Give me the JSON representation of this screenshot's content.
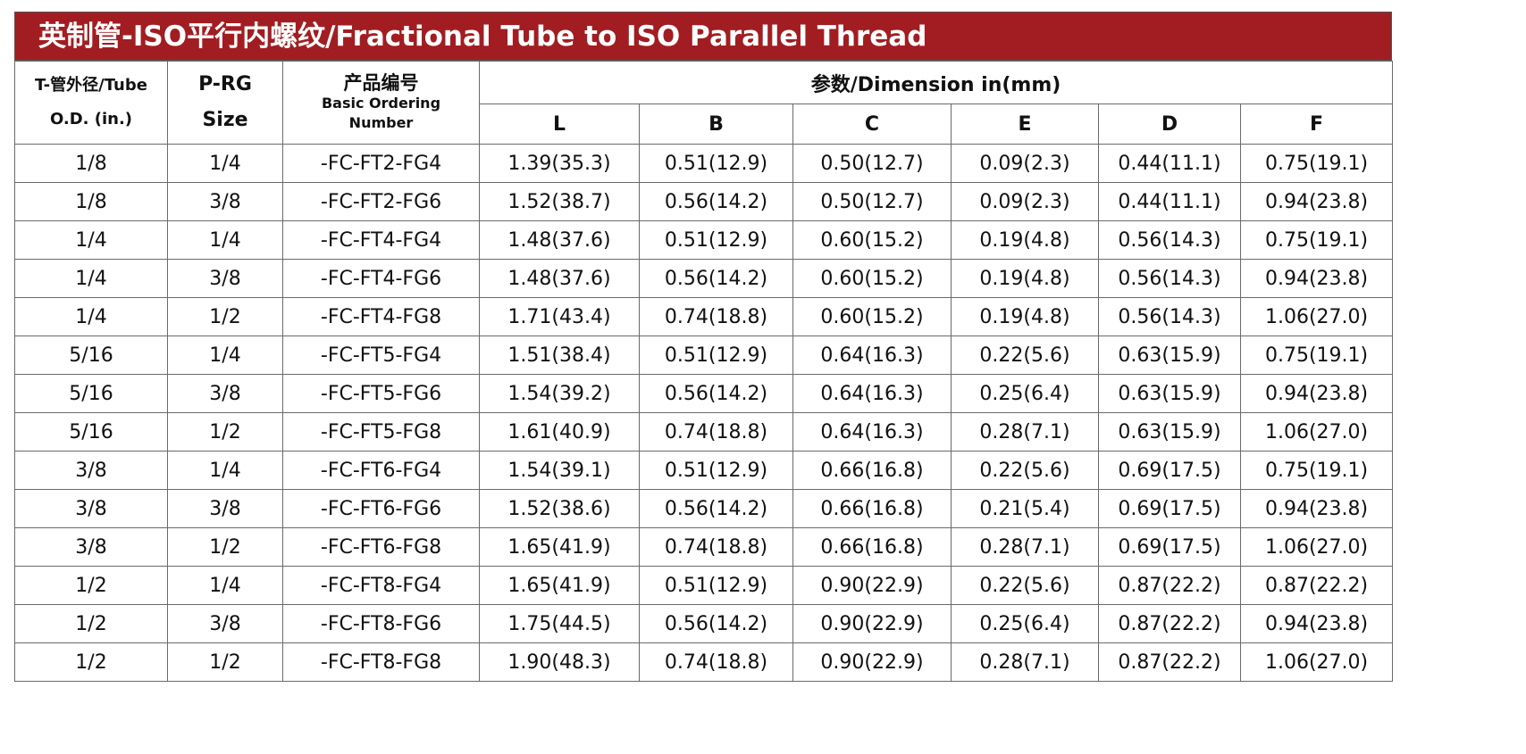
{
  "title": "英制管-ISO平行内螺纹/Fractional Tube to ISO Parallel Thread",
  "colors": {
    "title_bg": "#a21d21",
    "title_text": "#ffffff",
    "border": "#6a6a6a"
  },
  "headers": {
    "tube_od_line1": "T-管外径/Tube",
    "tube_od_line2": "O.D. (in.)",
    "prg_line1": "P-RG",
    "prg_line2": "Size",
    "code_cn": "产品编号",
    "code_en_line1": "Basic Ordering",
    "code_en_line2": "Number",
    "dimension": "参数/Dimension in(mm)",
    "dims": [
      "L",
      "B",
      "C",
      "E",
      "D",
      "F"
    ]
  },
  "rows": [
    [
      "1/8",
      "1/4",
      "-FC-FT2-FG4",
      "1.39(35.3)",
      "0.51(12.9)",
      "0.50(12.7)",
      "0.09(2.3)",
      "0.44(11.1)",
      "0.75(19.1)"
    ],
    [
      "1/8",
      "3/8",
      "-FC-FT2-FG6",
      "1.52(38.7)",
      "0.56(14.2)",
      "0.50(12.7)",
      "0.09(2.3)",
      "0.44(11.1)",
      "0.94(23.8)"
    ],
    [
      "1/4",
      "1/4",
      "-FC-FT4-FG4",
      "1.48(37.6)",
      "0.51(12.9)",
      "0.60(15.2)",
      "0.19(4.8)",
      "0.56(14.3)",
      "0.75(19.1)"
    ],
    [
      "1/4",
      "3/8",
      "-FC-FT4-FG6",
      "1.48(37.6)",
      "0.56(14.2)",
      "0.60(15.2)",
      "0.19(4.8)",
      "0.56(14.3)",
      "0.94(23.8)"
    ],
    [
      "1/4",
      "1/2",
      "-FC-FT4-FG8",
      "1.71(43.4)",
      "0.74(18.8)",
      "0.60(15.2)",
      "0.19(4.8)",
      "0.56(14.3)",
      "1.06(27.0)"
    ],
    [
      "5/16",
      "1/4",
      "-FC-FT5-FG4",
      "1.51(38.4)",
      "0.51(12.9)",
      "0.64(16.3)",
      "0.22(5.6)",
      "0.63(15.9)",
      "0.75(19.1)"
    ],
    [
      "5/16",
      "3/8",
      "-FC-FT5-FG6",
      "1.54(39.2)",
      "0.56(14.2)",
      "0.64(16.3)",
      "0.25(6.4)",
      "0.63(15.9)",
      "0.94(23.8)"
    ],
    [
      "5/16",
      "1/2",
      "-FC-FT5-FG8",
      "1.61(40.9)",
      "0.74(18.8)",
      "0.64(16.3)",
      "0.28(7.1)",
      "0.63(15.9)",
      "1.06(27.0)"
    ],
    [
      "3/8",
      "1/4",
      "-FC-FT6-FG4",
      "1.54(39.1)",
      "0.51(12.9)",
      "0.66(16.8)",
      "0.22(5.6)",
      "0.69(17.5)",
      "0.75(19.1)"
    ],
    [
      "3/8",
      "3/8",
      "-FC-FT6-FG6",
      "1.52(38.6)",
      "0.56(14.2)",
      "0.66(16.8)",
      "0.21(5.4)",
      "0.69(17.5)",
      "0.94(23.8)"
    ],
    [
      "3/8",
      "1/2",
      "-FC-FT6-FG8",
      "1.65(41.9)",
      "0.74(18.8)",
      "0.66(16.8)",
      "0.28(7.1)",
      "0.69(17.5)",
      "1.06(27.0)"
    ],
    [
      "1/2",
      "1/4",
      "-FC-FT8-FG4",
      "1.65(41.9)",
      "0.51(12.9)",
      "0.90(22.9)",
      "0.22(5.6)",
      "0.87(22.2)",
      "0.87(22.2)"
    ],
    [
      "1/2",
      "3/8",
      "-FC-FT8-FG6",
      "1.75(44.5)",
      "0.56(14.2)",
      "0.90(22.9)",
      "0.25(6.4)",
      "0.87(22.2)",
      "0.94(23.8)"
    ],
    [
      "1/2",
      "1/2",
      "-FC-FT8-FG8",
      "1.90(48.3)",
      "0.74(18.8)",
      "0.90(22.9)",
      "0.28(7.1)",
      "0.87(22.2)",
      "1.06(27.0)"
    ]
  ]
}
